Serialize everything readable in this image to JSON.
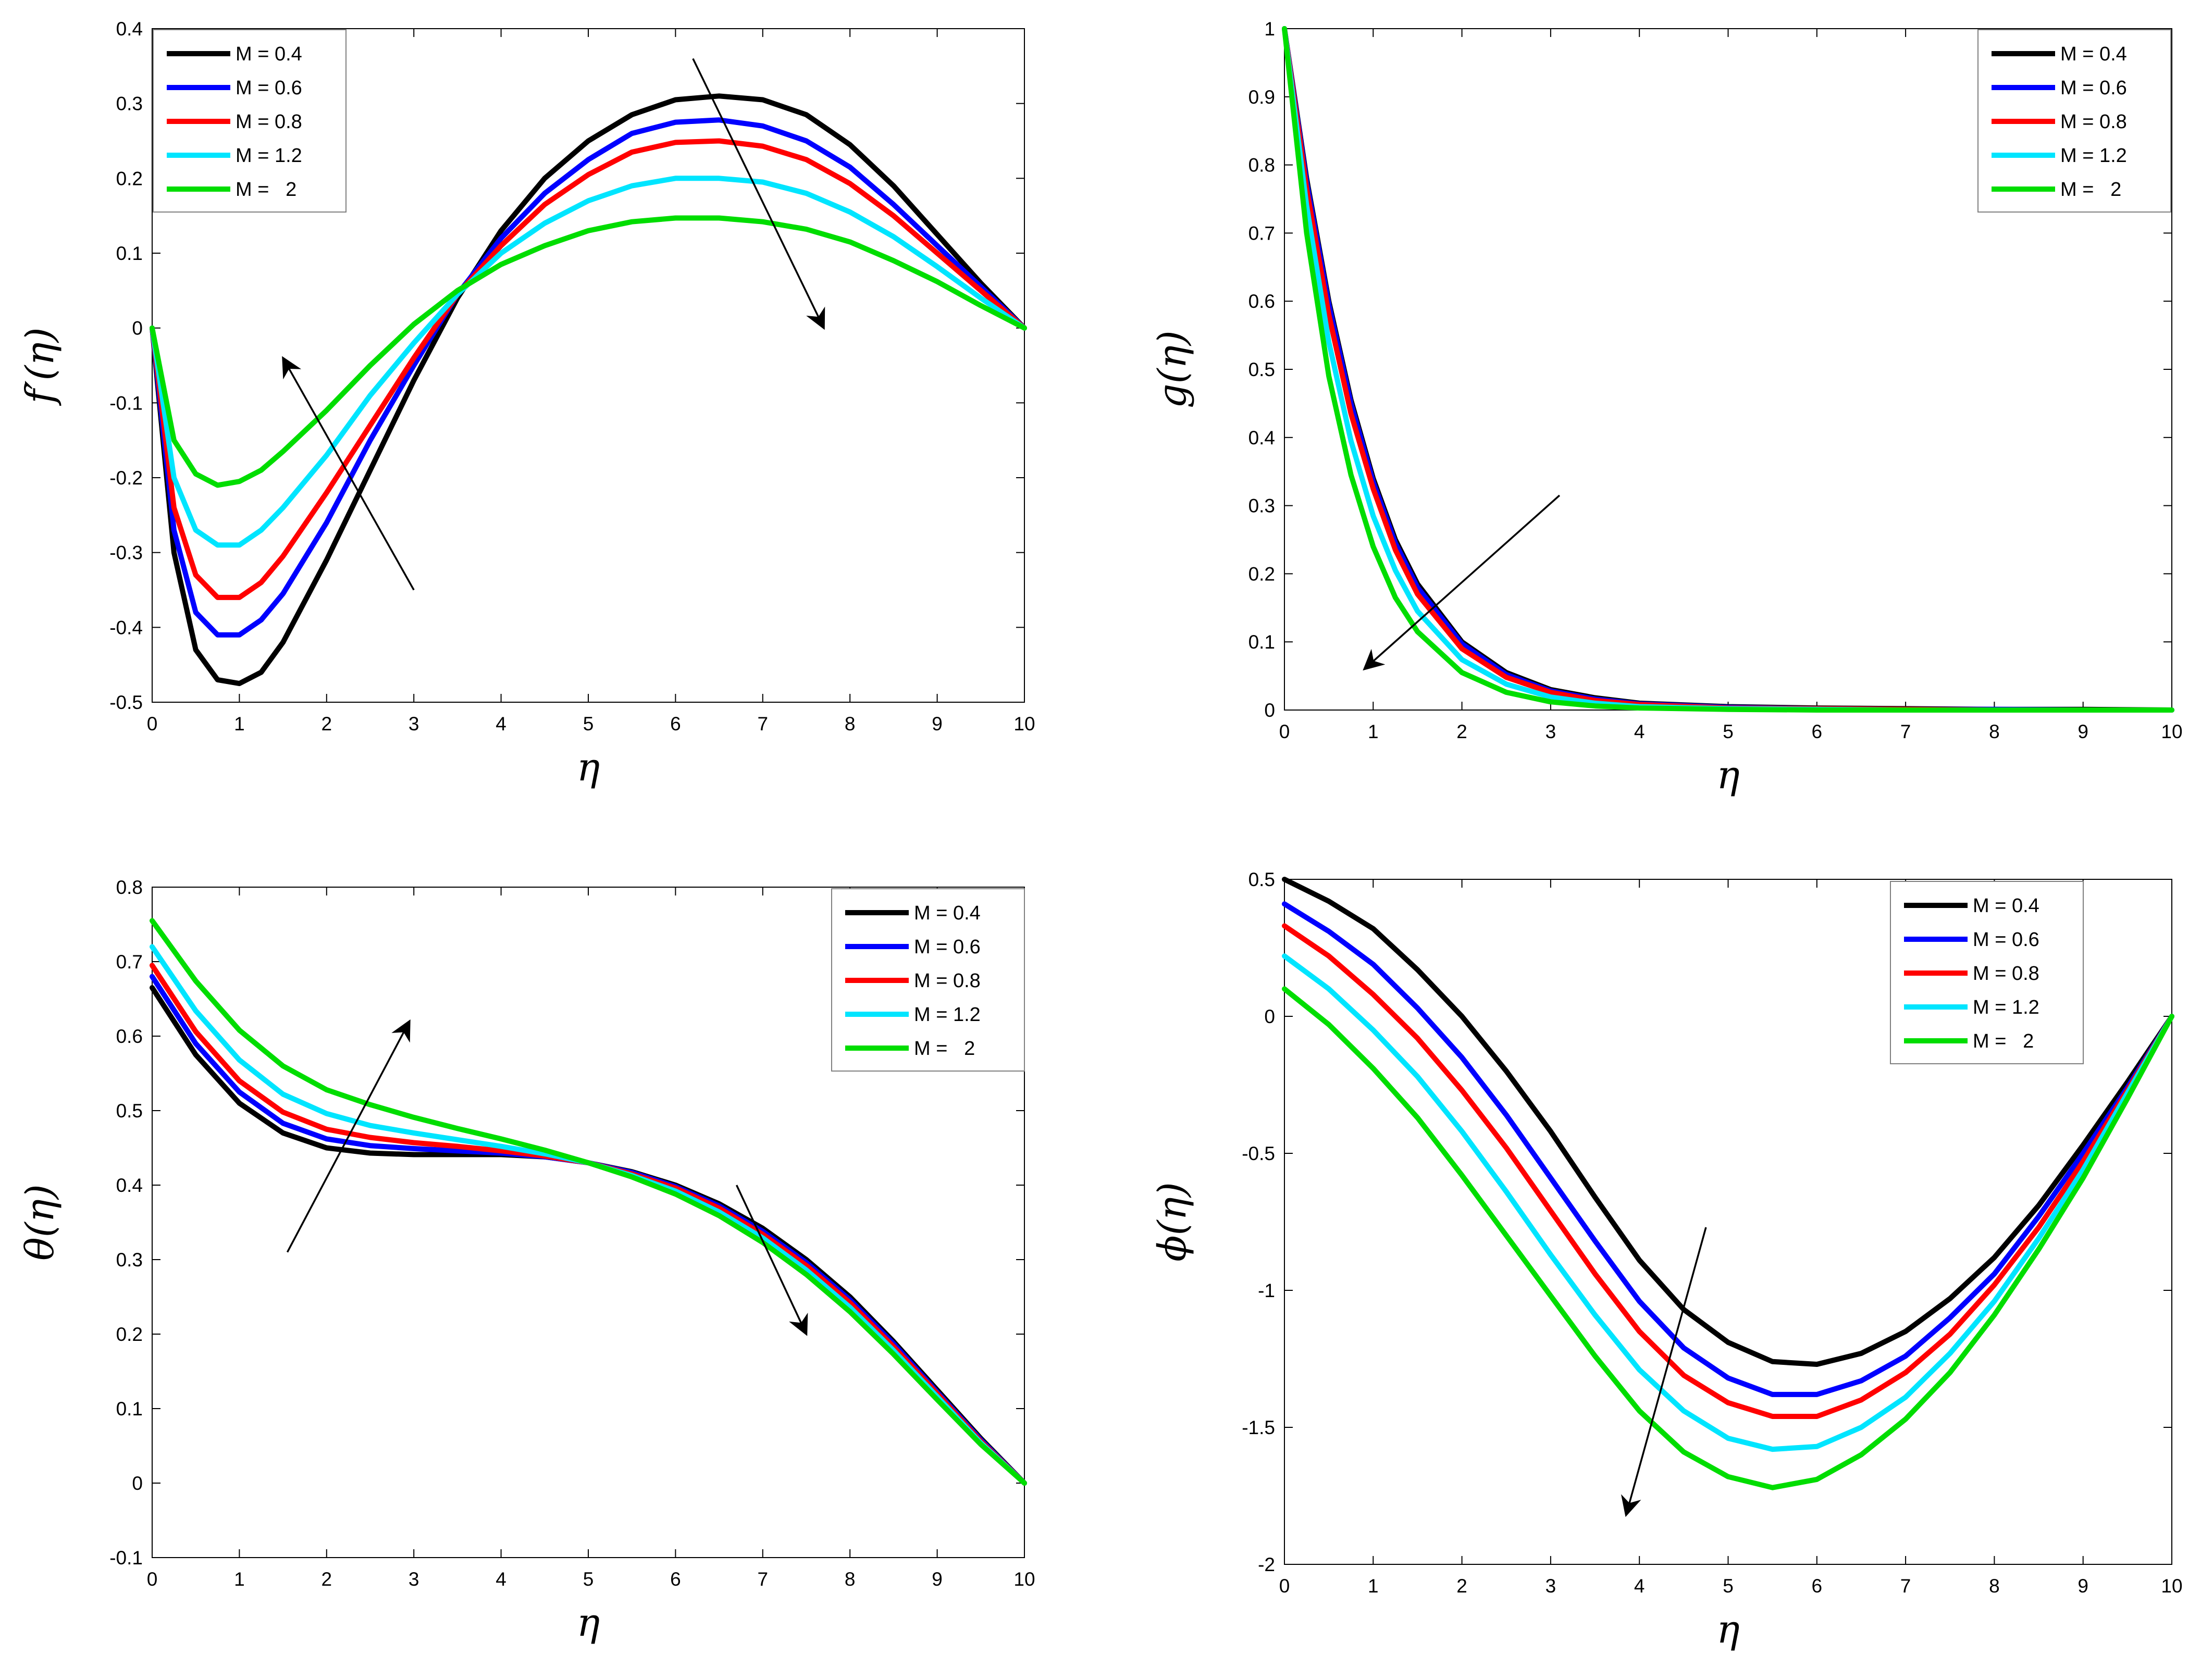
{
  "figure": {
    "colors": {
      "axis": "#000000",
      "legend_border": "#7f7f7f"
    },
    "legend_labels": [
      "M = 0.4",
      "M = 0.6",
      "M = 0.8",
      "M = 1.2",
      "M =   2"
    ]
  },
  "chart_data": [
    {
      "id": "fprime",
      "type": "line",
      "xlabel": "η",
      "ylabel": "f′(η)",
      "xlim": [
        0,
        10
      ],
      "ylim": [
        -0.5,
        0.4
      ],
      "xticks": [
        0,
        1,
        2,
        3,
        4,
        5,
        6,
        7,
        8,
        9,
        10
      ],
      "yticks": [
        -0.5,
        -0.4,
        -0.3,
        -0.2,
        -0.1,
        0,
        0.1,
        0.2,
        0.3,
        0.4
      ],
      "ytick_labels": [
        "-0.5",
        "-0.4",
        "-0.3",
        "-0.2",
        "-0.1",
        "0",
        "0.1",
        "0.2",
        "0.3",
        "0.4"
      ],
      "legend_position": "top-left",
      "x": [
        0,
        0.25,
        0.5,
        0.75,
        1,
        1.25,
        1.5,
        2,
        2.5,
        3,
        3.5,
        4,
        4.5,
        5,
        5.5,
        6,
        6.5,
        7,
        7.5,
        8,
        8.5,
        9,
        9.5,
        10
      ],
      "series": [
        {
          "name": "M = 0.4",
          "color": "#000000",
          "values": [
            0,
            -0.3,
            -0.43,
            -0.47,
            -0.475,
            -0.46,
            -0.42,
            -0.31,
            -0.19,
            -0.07,
            0.04,
            0.13,
            0.2,
            0.25,
            0.285,
            0.305,
            0.31,
            0.305,
            0.285,
            0.245,
            0.19,
            0.125,
            0.06,
            0
          ]
        },
        {
          "name": "M = 0.6",
          "color": "#0000ff",
          "values": [
            0,
            -0.27,
            -0.38,
            -0.41,
            -0.41,
            -0.39,
            -0.355,
            -0.26,
            -0.15,
            -0.05,
            0.045,
            0.12,
            0.18,
            0.225,
            0.26,
            0.275,
            0.278,
            0.27,
            0.25,
            0.215,
            0.165,
            0.11,
            0.055,
            0
          ]
        },
        {
          "name": "M = 0.8",
          "color": "#ff0000",
          "values": [
            0,
            -0.24,
            -0.33,
            -0.36,
            -0.36,
            -0.34,
            -0.305,
            -0.22,
            -0.13,
            -0.04,
            0.045,
            0.11,
            0.165,
            0.205,
            0.235,
            0.248,
            0.25,
            0.243,
            0.225,
            0.193,
            0.15,
            0.1,
            0.05,
            0
          ]
        },
        {
          "name": "M = 1.2",
          "color": "#00e5ff",
          "values": [
            0,
            -0.2,
            -0.27,
            -0.29,
            -0.29,
            -0.27,
            -0.24,
            -0.17,
            -0.09,
            -0.02,
            0.045,
            0.1,
            0.14,
            0.17,
            0.19,
            0.2,
            0.2,
            0.195,
            0.18,
            0.155,
            0.122,
            0.082,
            0.04,
            0
          ]
        },
        {
          "name": "M =   2",
          "color": "#00dd00",
          "values": [
            0,
            -0.15,
            -0.195,
            -0.21,
            -0.205,
            -0.19,
            -0.165,
            -0.11,
            -0.05,
            0.005,
            0.05,
            0.085,
            0.11,
            0.13,
            0.142,
            0.147,
            0.147,
            0.142,
            0.132,
            0.115,
            0.09,
            0.062,
            0.03,
            0
          ]
        }
      ],
      "arrows": [
        {
          "from": [
            3,
            -0.35
          ],
          "to": [
            1.5,
            -0.04
          ]
        },
        {
          "from": [
            6.2,
            0.36
          ],
          "to": [
            7.7,
            0.0
          ]
        }
      ]
    },
    {
      "id": "g",
      "type": "line",
      "xlabel": "η",
      "ylabel": "g(η)",
      "xlim": [
        0,
        10
      ],
      "ylim": [
        0,
        1
      ],
      "xticks": [
        0,
        1,
        2,
        3,
        4,
        5,
        6,
        7,
        8,
        9,
        10
      ],
      "yticks": [
        0,
        0.1,
        0.2,
        0.3,
        0.4,
        0.5,
        0.6,
        0.7,
        0.8,
        0.9,
        1
      ],
      "ytick_labels": [
        "0",
        "0.1",
        "0.2",
        "0.3",
        "0.4",
        "0.5",
        "0.6",
        "0.7",
        "0.8",
        "0.9",
        "1"
      ],
      "legend_position": "top-right",
      "x": [
        0,
        0.25,
        0.5,
        0.75,
        1,
        1.25,
        1.5,
        2,
        2.5,
        3,
        3.5,
        4,
        5,
        6,
        7,
        8,
        9,
        10
      ],
      "series": [
        {
          "name": "M = 0.4",
          "color": "#000000",
          "values": [
            1,
            0.78,
            0.6,
            0.455,
            0.34,
            0.25,
            0.185,
            0.1,
            0.055,
            0.03,
            0.018,
            0.01,
            0.005,
            0.003,
            0.002,
            0.001,
            0.001,
            0
          ]
        },
        {
          "name": "M = 0.6",
          "color": "#0000ff",
          "values": [
            1,
            0.775,
            0.595,
            0.45,
            0.335,
            0.245,
            0.18,
            0.097,
            0.052,
            0.028,
            0.016,
            0.009,
            0.004,
            0.002,
            0.001,
            0.001,
            0,
            0
          ]
        },
        {
          "name": "M = 0.8",
          "color": "#ff0000",
          "values": [
            1,
            0.765,
            0.58,
            0.435,
            0.325,
            0.235,
            0.17,
            0.09,
            0.048,
            0.026,
            0.014,
            0.008,
            0.003,
            0.002,
            0.001,
            0,
            0,
            0
          ]
        },
        {
          "name": "M = 1.2",
          "color": "#00e5ff",
          "values": [
            1,
            0.74,
            0.54,
            0.395,
            0.285,
            0.205,
            0.145,
            0.074,
            0.038,
            0.019,
            0.01,
            0.005,
            0.002,
            0.001,
            0,
            0,
            0,
            0
          ]
        },
        {
          "name": "M =   2",
          "color": "#00dd00",
          "values": [
            1,
            0.7,
            0.49,
            0.345,
            0.24,
            0.165,
            0.115,
            0.055,
            0.026,
            0.012,
            0.006,
            0.003,
            0.001,
            0,
            0,
            0,
            0,
            0
          ]
        }
      ],
      "arrows": [
        {
          "from": [
            3.1,
            0.315
          ],
          "to": [
            0.9,
            0.06
          ]
        }
      ]
    },
    {
      "id": "theta",
      "type": "line",
      "xlabel": "η",
      "ylabel": "θ(η)",
      "xlim": [
        0,
        10
      ],
      "ylim": [
        -0.1,
        0.8
      ],
      "xticks": [
        0,
        1,
        2,
        3,
        4,
        5,
        6,
        7,
        8,
        9,
        10
      ],
      "yticks": [
        -0.1,
        0,
        0.1,
        0.2,
        0.3,
        0.4,
        0.5,
        0.6,
        0.7,
        0.8
      ],
      "ytick_labels": [
        "-0.1",
        "0",
        "0.1",
        "0.2",
        "0.3",
        "0.4",
        "0.5",
        "0.6",
        "0.7",
        "0.8"
      ],
      "legend_position": "top-right",
      "x": [
        0,
        0.5,
        1,
        1.5,
        2,
        2.5,
        3,
        3.5,
        4,
        4.5,
        5,
        5.5,
        6,
        6.5,
        7,
        7.5,
        8,
        8.5,
        9,
        9.5,
        10
      ],
      "series": [
        {
          "name": "M = 0.4",
          "color": "#000000",
          "values": [
            0.665,
            0.575,
            0.51,
            0.47,
            0.45,
            0.443,
            0.441,
            0.441,
            0.441,
            0.438,
            0.43,
            0.418,
            0.4,
            0.375,
            0.342,
            0.3,
            0.25,
            0.19,
            0.125,
            0.06,
            0
          ]
        },
        {
          "name": "M = 0.6",
          "color": "#0000ff",
          "values": [
            0.68,
            0.59,
            0.525,
            0.483,
            0.462,
            0.453,
            0.449,
            0.446,
            0.443,
            0.438,
            0.43,
            0.417,
            0.398,
            0.372,
            0.338,
            0.296,
            0.246,
            0.187,
            0.122,
            0.058,
            0
          ]
        },
        {
          "name": "M = 0.8",
          "color": "#ff0000",
          "values": [
            0.695,
            0.606,
            0.54,
            0.498,
            0.475,
            0.464,
            0.457,
            0.452,
            0.446,
            0.439,
            0.43,
            0.415,
            0.396,
            0.369,
            0.334,
            0.292,
            0.242,
            0.183,
            0.12,
            0.056,
            0
          ]
        },
        {
          "name": "M = 1.2",
          "color": "#00e5ff",
          "values": [
            0.72,
            0.634,
            0.568,
            0.522,
            0.496,
            0.48,
            0.47,
            0.461,
            0.452,
            0.442,
            0.43,
            0.413,
            0.392,
            0.364,
            0.329,
            0.286,
            0.236,
            0.178,
            0.116,
            0.054,
            0
          ]
        },
        {
          "name": "M =   2",
          "color": "#00dd00",
          "values": [
            0.755,
            0.674,
            0.608,
            0.56,
            0.528,
            0.508,
            0.491,
            0.476,
            0.462,
            0.447,
            0.43,
            0.411,
            0.388,
            0.359,
            0.323,
            0.28,
            0.23,
            0.173,
            0.112,
            0.052,
            0
          ]
        }
      ],
      "arrows": [
        {
          "from": [
            1.55,
            0.31
          ],
          "to": [
            2.95,
            0.62
          ]
        },
        {
          "from": [
            6.7,
            0.4
          ],
          "to": [
            7.5,
            0.2
          ]
        }
      ]
    },
    {
      "id": "phi",
      "type": "line",
      "xlabel": "η",
      "ylabel": "ϕ(η)",
      "xlim": [
        0,
        10
      ],
      "ylim": [
        -2,
        0.5
      ],
      "xticks": [
        0,
        1,
        2,
        3,
        4,
        5,
        6,
        7,
        8,
        9,
        10
      ],
      "yticks": [
        -2,
        -1.5,
        -1,
        -0.5,
        0,
        0.5
      ],
      "ytick_labels": [
        "-2",
        "-1.5",
        "-1",
        "-0.5",
        "0",
        "0.5"
      ],
      "legend_position": "top-right",
      "x": [
        0,
        0.5,
        1,
        1.5,
        2,
        2.5,
        3,
        3.5,
        4,
        4.5,
        5,
        5.5,
        6,
        6.5,
        7,
        7.5,
        8,
        8.5,
        9,
        9.5,
        10
      ],
      "series": [
        {
          "name": "M = 0.4",
          "color": "#000000",
          "values": [
            0.5,
            0.42,
            0.32,
            0.17,
            0,
            -0.2,
            -0.42,
            -0.66,
            -0.89,
            -1.07,
            -1.19,
            -1.26,
            -1.27,
            -1.23,
            -1.15,
            -1.03,
            -0.88,
            -0.69,
            -0.47,
            -0.24,
            0
          ]
        },
        {
          "name": "M = 0.6",
          "color": "#0000ff",
          "values": [
            0.41,
            0.31,
            0.19,
            0.03,
            -0.15,
            -0.36,
            -0.59,
            -0.82,
            -1.04,
            -1.21,
            -1.32,
            -1.38,
            -1.38,
            -1.33,
            -1.24,
            -1.1,
            -0.94,
            -0.73,
            -0.5,
            -0.26,
            0
          ]
        },
        {
          "name": "M = 0.8",
          "color": "#ff0000",
          "values": [
            0.33,
            0.22,
            0.08,
            -0.08,
            -0.27,
            -0.48,
            -0.71,
            -0.94,
            -1.15,
            -1.31,
            -1.41,
            -1.46,
            -1.46,
            -1.4,
            -1.3,
            -1.16,
            -0.98,
            -0.77,
            -0.53,
            -0.27,
            0
          ]
        },
        {
          "name": "M = 1.2",
          "color": "#00e5ff",
          "values": [
            0.22,
            0.1,
            -0.05,
            -0.22,
            -0.42,
            -0.64,
            -0.87,
            -1.09,
            -1.29,
            -1.44,
            -1.54,
            -1.58,
            -1.57,
            -1.5,
            -1.39,
            -1.23,
            -1.04,
            -0.81,
            -0.56,
            -0.28,
            0
          ]
        },
        {
          "name": "M =   2",
          "color": "#00dd00",
          "values": [
            0.1,
            -0.03,
            -0.19,
            -0.37,
            -0.58,
            -0.8,
            -1.02,
            -1.24,
            -1.44,
            -1.59,
            -1.68,
            -1.72,
            -1.69,
            -1.6,
            -1.47,
            -1.3,
            -1.09,
            -0.85,
            -0.59,
            -0.3,
            0
          ]
        }
      ],
      "arrows": [
        {
          "from": [
            4.75,
            -0.77
          ],
          "to": [
            3.85,
            -1.82
          ]
        }
      ]
    }
  ]
}
